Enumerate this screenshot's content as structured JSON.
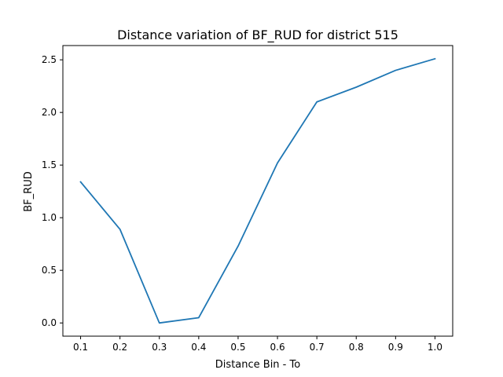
{
  "chart_data": {
    "type": "line",
    "title": "Distance variation of BF_RUD for district 515",
    "xlabel": "Distance Bin - To",
    "ylabel": "BF_RUD",
    "x": [
      0.1,
      0.2,
      0.3,
      0.4,
      0.5,
      0.6,
      0.7,
      0.8,
      0.9,
      1.0
    ],
    "series": [
      {
        "values": [
          1.34,
          0.89,
          0.0,
          0.05,
          0.73,
          1.52,
          2.1,
          2.24,
          2.4,
          2.51
        ],
        "color": "#1f77b4"
      }
    ],
    "xlim": [
      0.055,
      1.045
    ],
    "ylim": [
      -0.1255,
      2.6355
    ],
    "xticks": [
      0.1,
      0.2,
      0.3,
      0.4,
      0.5,
      0.6,
      0.7,
      0.8,
      0.9,
      1.0
    ],
    "xtick_labels": [
      "0.1",
      "0.2",
      "0.3",
      "0.4",
      "0.5",
      "0.6",
      "0.7",
      "0.8",
      "0.9",
      "1.0"
    ],
    "yticks": [
      0.0,
      0.5,
      1.0,
      1.5,
      2.0,
      2.5
    ],
    "ytick_labels": [
      "0.0",
      "0.5",
      "1.0",
      "1.5",
      "2.0",
      "2.5"
    ],
    "grid": false,
    "legend": "none"
  }
}
